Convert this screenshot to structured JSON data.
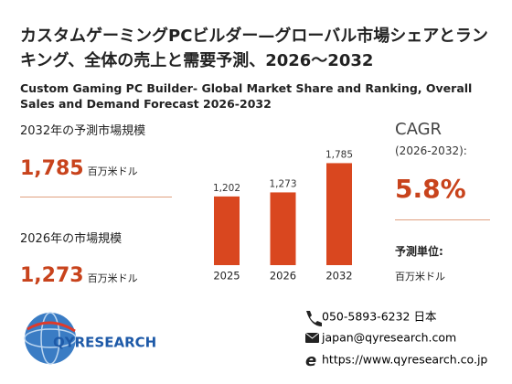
{
  "title": "カスタムゲーミングPCビルダー—グローバル市場シェアとランキング、全体の売上と需要予測、2026～2032",
  "subtitle": "Custom Gaming PC Builder- Global Market Share and Ranking, Overall Sales and Demand Forecast 2026-2032",
  "stats": [
    {
      "label": "2032年の予測市場規模",
      "value": "1,785",
      "unit": "百万米ドル"
    },
    {
      "label": "2026年の市場規模",
      "value": "1,273",
      "unit": "百万米ドル"
    }
  ],
  "cagr": {
    "label": "CAGR",
    "period": "(2026-2032):",
    "value": "5.8%"
  },
  "forecast_unit": {
    "label": "予測単位:",
    "value": "百万米ドル"
  },
  "chart_data": {
    "type": "bar",
    "categories": [
      "2025",
      "2026",
      "2032"
    ],
    "values": [
      1202,
      1273,
      1785
    ],
    "value_labels": [
      "1,202",
      "1,273",
      "1,785"
    ],
    "color": "#d9471f"
  },
  "logo": "QYRESEARCH",
  "contact": {
    "phone": "050-5893-6232 日本",
    "email": "japan@qyresearch.com",
    "web": "https://www.qyresearch.co.jp"
  }
}
